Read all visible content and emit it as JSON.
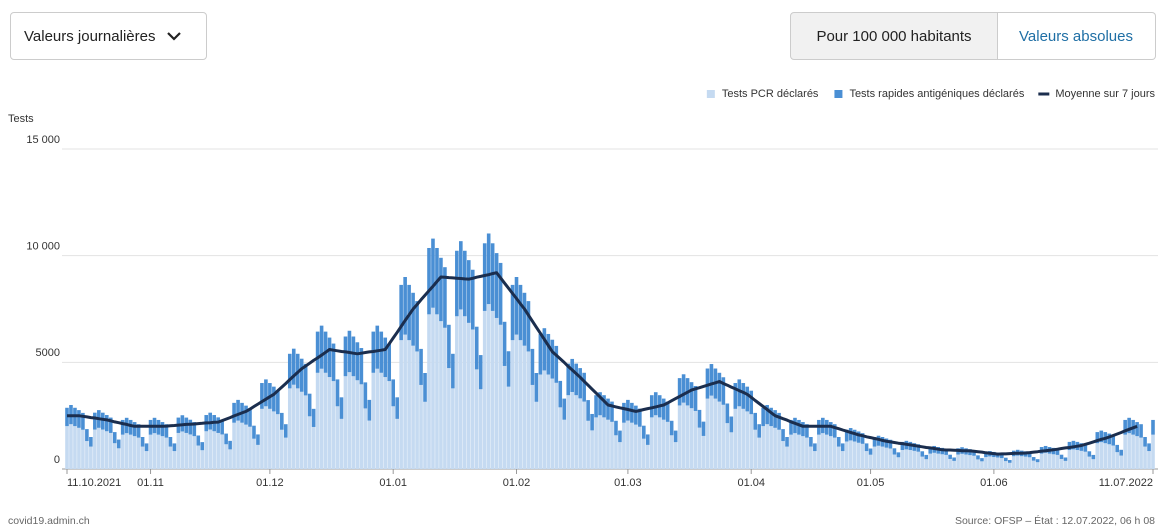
{
  "controls": {
    "dropdown": "Valeurs journalières",
    "toggle": [
      "Pour 100 000 habitants",
      "Valeurs absolues"
    ]
  },
  "footer": {
    "left": "covid19.admin.ch",
    "right": "Source: OFSP – État : 12.07.2022, 06 h 08"
  },
  "chart_data": {
    "type": "bar",
    "stacked": true,
    "y_label": "Tests",
    "grid": true,
    "legend": "top-right",
    "categories": [
      "11.10.2021",
      null,
      null,
      null,
      null,
      null,
      null,
      null,
      null,
      null,
      null,
      null,
      null,
      null,
      null,
      null,
      null,
      null,
      null,
      null,
      null,
      "01.11",
      null,
      null,
      null,
      null,
      null,
      null,
      null,
      null,
      null,
      null,
      null,
      null,
      null,
      null,
      null,
      null,
      null,
      null,
      null,
      null,
      null,
      null,
      null,
      null,
      null,
      null,
      null,
      null,
      null,
      "01.12",
      null,
      null,
      null,
      null,
      null,
      null,
      null,
      null,
      null,
      null,
      null,
      null,
      null,
      null,
      null,
      null,
      null,
      null,
      null,
      null,
      null,
      null,
      null,
      null,
      null,
      null,
      null,
      null,
      null,
      null,
      "01.01",
      null,
      null,
      null,
      null,
      null,
      null,
      null,
      null,
      null,
      null,
      null,
      null,
      null,
      null,
      null,
      null,
      null,
      null,
      null,
      null,
      null,
      null,
      null,
      null,
      null,
      null,
      null,
      null,
      null,
      null,
      "01.02",
      null,
      null,
      null,
      null,
      null,
      null,
      null,
      null,
      null,
      null,
      null,
      null,
      null,
      null,
      null,
      null,
      null,
      null,
      null,
      null,
      null,
      null,
      null,
      null,
      null,
      null,
      null,
      "01.03",
      null,
      null,
      null,
      null,
      null,
      null,
      null,
      null,
      null,
      null,
      null,
      null,
      null,
      null,
      null,
      null,
      null,
      null,
      null,
      null,
      null,
      null,
      null,
      null,
      null,
      null,
      null,
      null,
      null,
      null,
      "01.04",
      null,
      null,
      null,
      null,
      null,
      null,
      null,
      null,
      null,
      null,
      null,
      null,
      null,
      null,
      null,
      null,
      null,
      null,
      null,
      null,
      null,
      null,
      null,
      null,
      null,
      null,
      null,
      null,
      null,
      "01.05",
      null,
      null,
      null,
      null,
      null,
      null,
      null,
      null,
      null,
      null,
      null,
      null,
      null,
      null,
      null,
      null,
      null,
      null,
      null,
      null,
      null,
      null,
      null,
      null,
      null,
      null,
      null,
      null,
      null,
      null,
      "01.06",
      null,
      null,
      null,
      null,
      null,
      null,
      null,
      null,
      null,
      null,
      null,
      null,
      null,
      null,
      null,
      null,
      null,
      null,
      null,
      null,
      null,
      null,
      null,
      null,
      null,
      null,
      null,
      null,
      null,
      null,
      null,
      null,
      null,
      null,
      null,
      null,
      null,
      null,
      null,
      "11.07.2022"
    ],
    "ylim": [
      0,
      15000
    ],
    "yticks": [
      0,
      5000,
      {
        "value": 10000,
        "label": "10 000"
      },
      {
        "value": 15000,
        "label": "15 000"
      }
    ],
    "series": [
      {
        "name": "Tests PCR déclarés",
        "color": "#c5daf1",
        "values": [
          2010,
          2100,
          2010,
          1930,
          1840,
          1310,
          1050,
          1850,
          1930,
          1850,
          1770,
          1690,
          1210,
          970,
          1610,
          1680,
          1610,
          1540,
          1470,
          1050,
          840,
          1610,
          1680,
          1610,
          1540,
          1470,
          1050,
          840,
          1690,
          1760,
          1690,
          1620,
          1540,
          1100,
          880,
          1770,
          1850,
          1770,
          1690,
          1620,
          1160,
          920,
          2170,
          2270,
          2170,
          2080,
          1980,
          1420,
          1130,
          2820,
          2940,
          2820,
          2700,
          2570,
          1840,
          1470,
          3780,
          3950,
          3780,
          3620,
          3450,
          2470,
          1970,
          4510,
          4700,
          4510,
          4310,
          4120,
          2940,
          2350,
          4350,
          4540,
          4350,
          4160,
          3970,
          2840,
          2270,
          4510,
          4700,
          4510,
          4310,
          4120,
          2940,
          2350,
          6040,
          6300,
          6040,
          5780,
          5510,
          3940,
          3150,
          7250,
          7560,
          7250,
          6930,
          6620,
          4730,
          3780,
          7160,
          7480,
          7160,
          6850,
          6540,
          4670,
          3740,
          7410,
          7730,
          7410,
          7080,
          6760,
          4830,
          3860,
          6040,
          6300,
          6040,
          5780,
          5510,
          3940,
          3150,
          4430,
          4620,
          4430,
          4240,
          4040,
          2890,
          2310,
          3460,
          3610,
          3460,
          3310,
          3160,
          2260,
          1810,
          2420,
          2520,
          2420,
          2310,
          2210,
          1580,
          1260,
          2170,
          2270,
          2170,
          2080,
          1980,
          1420,
          1130,
          2420,
          2520,
          2420,
          2310,
          2210,
          1580,
          1260,
          2980,
          3110,
          2980,
          2850,
          2720,
          1940,
          1550,
          3300,
          3440,
          3300,
          3160,
          3010,
          2150,
          1720,
          2820,
          2940,
          2820,
          2700,
          2570,
          1840,
          1470,
          2010,
          2100,
          2010,
          1930,
          1840,
          1310,
          1050,
          1610,
          1680,
          1610,
          1540,
          1470,
          1050,
          840,
          1610,
          1680,
          1610,
          1540,
          1470,
          1050,
          840,
          1290,
          1340,
          1290,
          1230,
          1180,
          840,
          670,
          1050,
          1090,
          1050,
          1000,
          960,
          680,
          550,
          890,
          920,
          890,
          850,
          810,
          580,
          460,
          720,
          760,
          720,
          690,
          660,
          470,
          380,
          680,
          710,
          680,
          650,
          620,
          450,
          360,
          560,
          590,
          560,
          540,
          510,
          370,
          290,
          600,
          630,
          600,
          580,
          550,
          390,
          320,
          720,
          760,
          720,
          690,
          660,
          470,
          380,
          890,
          920,
          890,
          850,
          810,
          580,
          460,
          1210,
          1260,
          1210,
          1160,
          1100,
          790,
          630,
          1610,
          1680,
          1610,
          1540,
          1470,
          1050,
          840,
          1610
        ]
      },
      {
        "name": "Tests rapides antigéniques déclarés",
        "color": "#4a8fd4",
        "values": [
          860,
          900,
          860,
          830,
          790,
          560,
          450,
          790,
          830,
          790,
          760,
          720,
          520,
          410,
          690,
          720,
          690,
          660,
          630,
          450,
          360,
          690,
          720,
          690,
          660,
          630,
          450,
          360,
          720,
          760,
          720,
          690,
          660,
          470,
          380,
          760,
          790,
          760,
          730,
          690,
          500,
          400,
          930,
          970,
          930,
          890,
          850,
          610,
          490,
          1210,
          1260,
          1210,
          1160,
          1100,
          790,
          630,
          1620,
          1690,
          1620,
          1550,
          1480,
          1060,
          850,
          1930,
          2020,
          1930,
          1850,
          1760,
          1260,
          1010,
          1860,
          1940,
          1860,
          1780,
          1700,
          1220,
          970,
          1930,
          2020,
          1930,
          1850,
          1760,
          1260,
          1010,
          2590,
          2700,
          2590,
          2480,
          2360,
          1690,
          1350,
          3110,
          3240,
          3110,
          2970,
          2840,
          2030,
          1620,
          3070,
          3200,
          3070,
          2940,
          2800,
          2000,
          1600,
          3170,
          3310,
          3170,
          3040,
          2900,
          2070,
          1660,
          2590,
          2700,
          2590,
          2480,
          2360,
          1690,
          1350,
          1900,
          1980,
          1900,
          1820,
          1730,
          1240,
          990,
          1480,
          1550,
          1480,
          1420,
          1350,
          970,
          770,
          1040,
          1080,
          1040,
          990,
          950,
          680,
          540,
          930,
          970,
          930,
          890,
          850,
          610,
          490,
          1040,
          1080,
          1040,
          990,
          950,
          680,
          540,
          1280,
          1330,
          1280,
          1220,
          1170,
          830,
          670,
          1410,
          1480,
          1410,
          1350,
          1290,
          920,
          740,
          1210,
          1260,
          1210,
          1160,
          1100,
          790,
          630,
          860,
          900,
          860,
          830,
          790,
          560,
          450,
          690,
          720,
          690,
          660,
          630,
          450,
          360,
          690,
          720,
          690,
          660,
          630,
          450,
          360,
          550,
          580,
          550,
          530,
          500,
          360,
          290,
          450,
          470,
          450,
          430,
          410,
          290,
          230,
          380,
          400,
          380,
          360,
          350,
          250,
          200,
          310,
          320,
          310,
          300,
          280,
          200,
          160,
          290,
          310,
          290,
          280,
          270,
          190,
          150,
          240,
          250,
          240,
          230,
          220,
          160,
          130,
          260,
          270,
          260,
          250,
          240,
          170,
          140,
          310,
          320,
          310,
          300,
          280,
          200,
          160,
          380,
          400,
          380,
          360,
          350,
          250,
          200,
          520,
          540,
          520,
          500,
          470,
          340,
          270,
          690,
          720,
          690,
          660,
          630,
          450,
          360,
          690
        ]
      },
      {
        "name": "Moyenne sur 7 jours",
        "type": "line",
        "color": "#1b2e4e",
        "values": [
          2500,
          2500,
          2500,
          2500,
          2470,
          2440,
          2410,
          2390,
          2360,
          2330,
          2300,
          2260,
          2210,
          2170,
          2130,
          2090,
          2040,
          2000,
          2000,
          2000,
          2000,
          2000,
          2000,
          2000,
          2000,
          2010,
          2030,
          2040,
          2060,
          2070,
          2090,
          2100,
          2110,
          2130,
          2140,
          2160,
          2170,
          2190,
          2200,
          2270,
          2340,
          2410,
          2490,
          2560,
          2630,
          2700,
          2810,
          2930,
          3040,
          3160,
          3270,
          3390,
          3500,
          3670,
          3840,
          4010,
          4190,
          4360,
          4530,
          4700,
          4830,
          4960,
          5090,
          5210,
          5340,
          5470,
          5600,
          5570,
          5540,
          5510,
          5490,
          5460,
          5430,
          5400,
          5430,
          5460,
          5490,
          5510,
          5540,
          5570,
          5600,
          5870,
          6140,
          6410,
          6690,
          6960,
          7230,
          7500,
          7710,
          7930,
          8140,
          8360,
          8570,
          8790,
          9000,
          8990,
          8970,
          8960,
          8940,
          8930,
          8910,
          8900,
          8940,
          8990,
          9030,
          9070,
          9110,
          9160,
          9200,
          8960,
          8710,
          8470,
          8230,
          7990,
          7740,
          7500,
          7210,
          6930,
          6640,
          6360,
          6070,
          5790,
          5500,
          5330,
          5160,
          4990,
          4810,
          4640,
          4470,
          4300,
          4110,
          3930,
          3740,
          3560,
          3370,
          3190,
          3000,
          2960,
          2910,
          2870,
          2830,
          2790,
          2740,
          2700,
          2740,
          2790,
          2830,
          2870,
          2910,
          2960,
          3000,
          3100,
          3200,
          3300,
          3400,
          3500,
          3600,
          3700,
          3760,
          3810,
          3870,
          3930,
          3990,
          4040,
          4100,
          4010,
          3930,
          3840,
          3760,
          3670,
          3590,
          3500,
          3360,
          3210,
          3070,
          2930,
          2790,
          2640,
          2500,
          2430,
          2360,
          2290,
          2210,
          2140,
          2070,
          2000,
          2000,
          2000,
          2000,
          2000,
          2000,
          2000,
          2000,
          1940,
          1890,
          1830,
          1770,
          1710,
          1660,
          1600,
          1560,
          1510,
          1470,
          1430,
          1390,
          1340,
          1300,
          1270,
          1240,
          1210,
          1190,
          1160,
          1130,
          1100,
          1070,
          1040,
          1010,
          990,
          960,
          930,
          900,
          890,
          890,
          880,
          870,
          860,
          860,
          850,
          830,
          810,
          790,
          760,
          740,
          720,
          700,
          710,
          710,
          720,
          730,
          740,
          740,
          750,
          770,
          790,
          810,
          840,
          860,
          880,
          900,
          930,
          960,
          990,
          1010,
          1040,
          1070,
          1100,
          1160,
          1210,
          1270,
          1330,
          1390,
          1440,
          1500,
          1570,
          1640,
          1710,
          1790,
          1860,
          1930,
          2000,
          null,
          null,
          null,
          null
        ]
      }
    ]
  }
}
